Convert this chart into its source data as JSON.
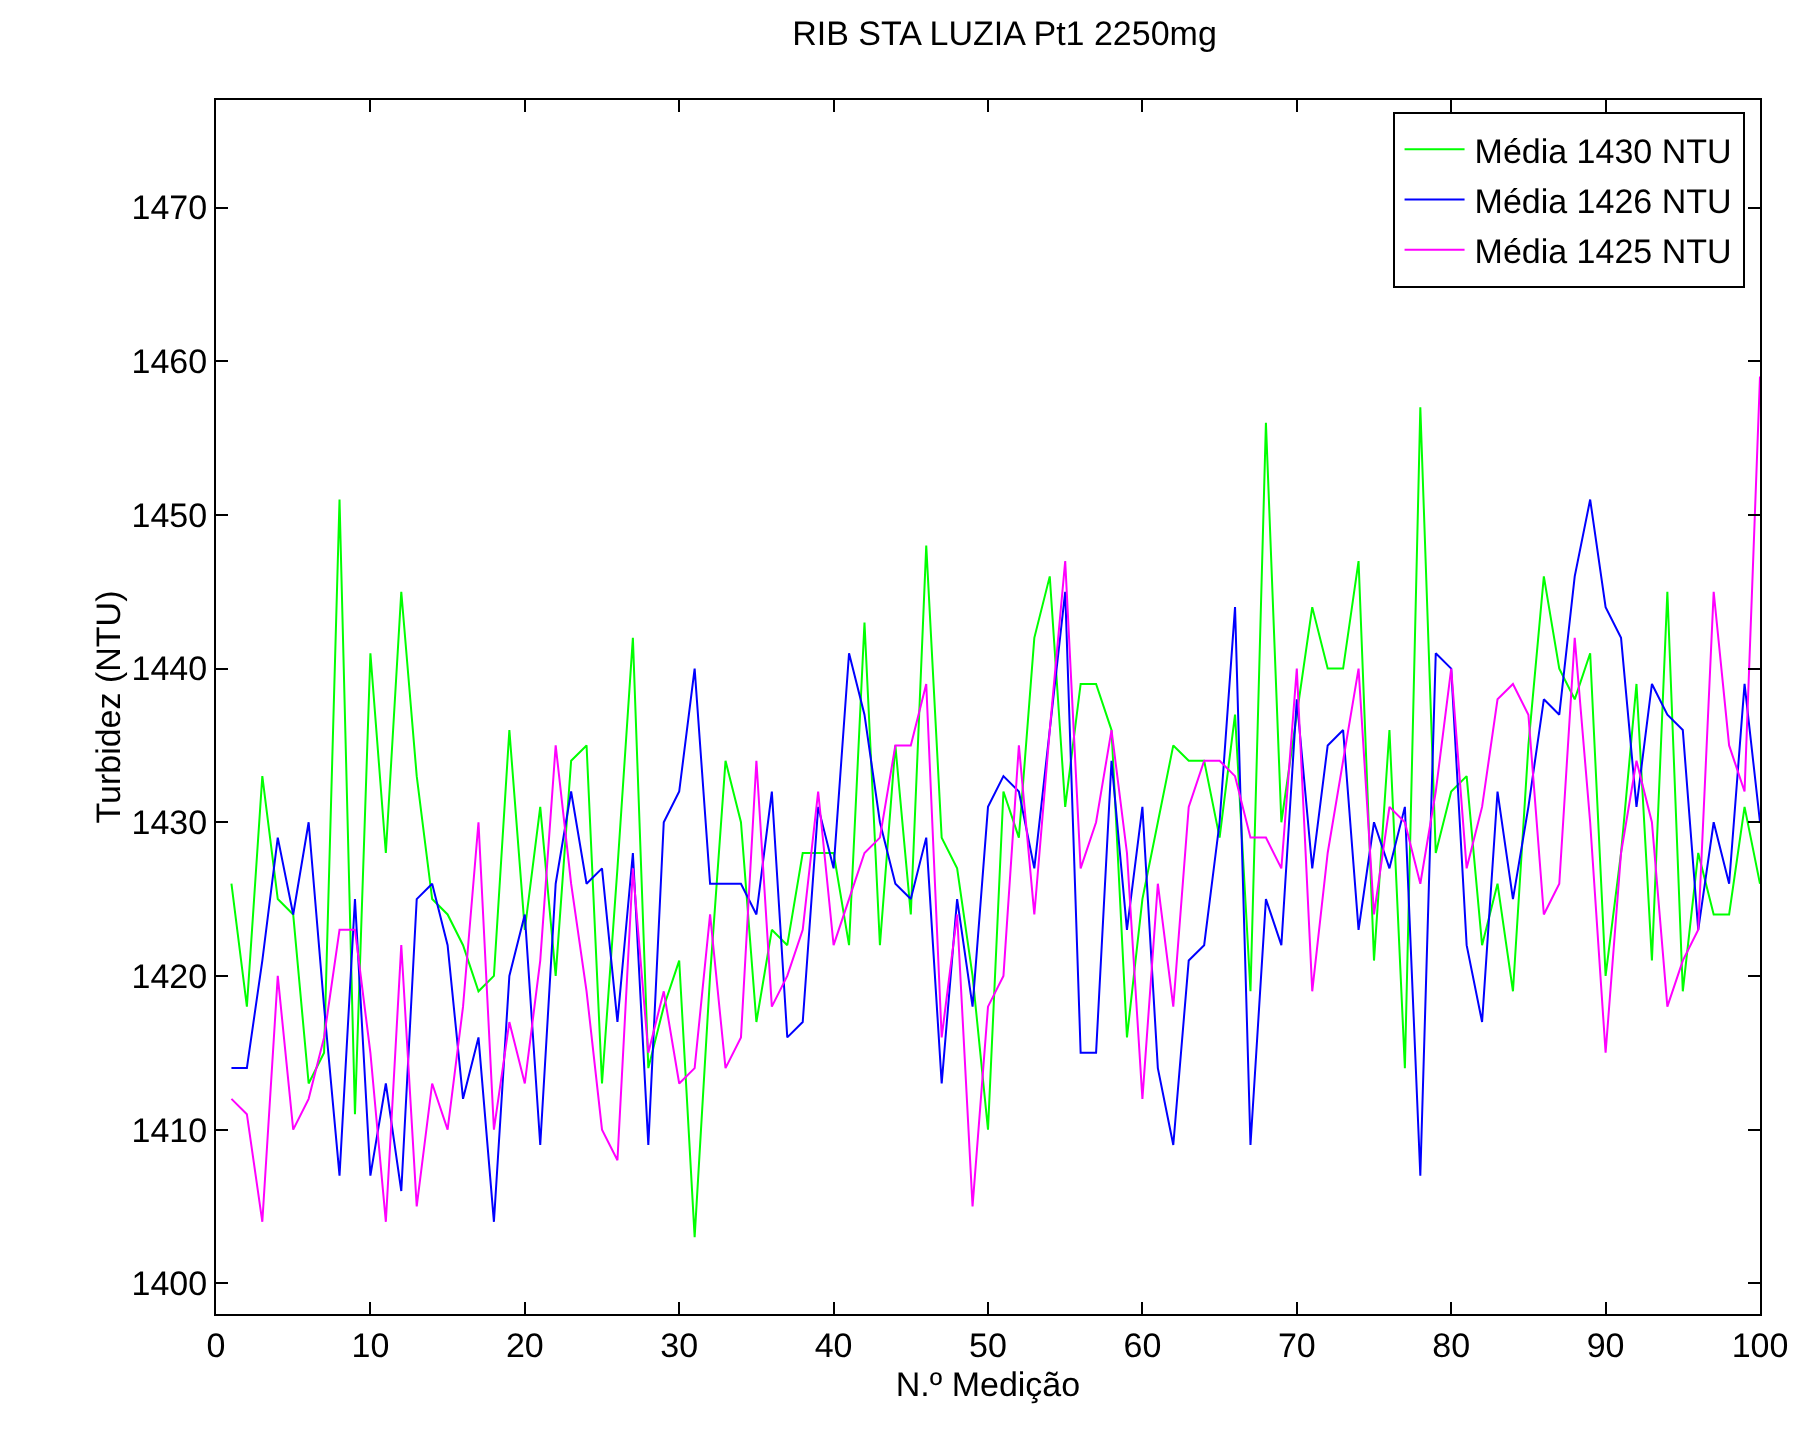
{
  "chart_data": {
    "type": "line",
    "title": "RIB STA LUZIA Pt1 2250mg",
    "xlabel": "N.º Medição",
    "ylabel": "Turbidez (NTU)",
    "x": [
      1,
      2,
      3,
      4,
      5,
      6,
      7,
      8,
      9,
      10,
      11,
      12,
      13,
      14,
      15,
      16,
      17,
      18,
      19,
      20,
      21,
      22,
      23,
      24,
      25,
      26,
      27,
      28,
      29,
      30,
      31,
      32,
      33,
      34,
      35,
      36,
      37,
      38,
      39,
      40,
      41,
      42,
      43,
      44,
      45,
      46,
      47,
      48,
      49,
      50,
      51,
      52,
      53,
      54,
      55,
      56,
      57,
      58,
      59,
      60,
      61,
      62,
      63,
      64,
      65,
      66,
      67,
      68,
      69,
      70,
      71,
      72,
      73,
      74,
      75,
      76,
      77,
      78,
      79,
      80,
      81,
      82,
      83,
      84,
      85,
      86,
      87,
      88,
      89,
      90,
      91,
      92,
      93,
      94,
      95,
      96,
      97,
      98,
      99,
      100
    ],
    "series": [
      {
        "name": "Média 1430 NTU",
        "color": "#00ff00",
        "values": [
          1426,
          1418,
          1433,
          1425,
          1424,
          1413,
          1415,
          1451,
          1411,
          1441,
          1428,
          1445,
          1433,
          1425,
          1424,
          1422,
          1419,
          1420,
          1436,
          1423,
          1431,
          1420,
          1434,
          1435,
          1413,
          1427,
          1442,
          1414,
          1418,
          1421,
          1403,
          1420,
          1434,
          1430,
          1417,
          1423,
          1422,
          1428,
          1428,
          1428,
          1422,
          1443,
          1422,
          1435,
          1424,
          1448,
          1429,
          1427,
          1420,
          1410,
          1432,
          1429,
          1442,
          1446,
          1431,
          1439,
          1439,
          1436,
          1416,
          1425,
          1430,
          1435,
          1434,
          1434,
          1429,
          1437,
          1419,
          1456,
          1430,
          1437,
          1444,
          1440,
          1440,
          1447,
          1421,
          1436,
          1414,
          1457,
          1428,
          1432,
          1433,
          1422,
          1426,
          1419,
          1435,
          1446,
          1440,
          1438,
          1441,
          1420,
          1428,
          1439,
          1421,
          1445,
          1419,
          1428,
          1424,
          1424,
          1431,
          1426
        ]
      },
      {
        "name": "Média 1426 NTU",
        "color": "#0000ff",
        "values": [
          1414,
          1414,
          1421,
          1429,
          1424,
          1430,
          1418,
          1407,
          1425,
          1407,
          1413,
          1406,
          1425,
          1426,
          1422,
          1412,
          1416,
          1404,
          1420,
          1424,
          1409,
          1426,
          1432,
          1426,
          1427,
          1417,
          1428,
          1409,
          1430,
          1432,
          1440,
          1426,
          1426,
          1426,
          1424,
          1432,
          1416,
          1417,
          1431,
          1427,
          1441,
          1437,
          1430,
          1426,
          1425,
          1429,
          1413,
          1425,
          1418,
          1431,
          1433,
          1432,
          1427,
          1436,
          1445,
          1415,
          1415,
          1434,
          1423,
          1431,
          1414,
          1409,
          1421,
          1422,
          1430,
          1444,
          1409,
          1425,
          1422,
          1438,
          1427,
          1435,
          1436,
          1423,
          1430,
          1427,
          1431,
          1407,
          1441,
          1440,
          1422,
          1417,
          1432,
          1425,
          1431,
          1438,
          1437,
          1446,
          1451,
          1444,
          1442,
          1431,
          1439,
          1437,
          1436,
          1423,
          1430,
          1426,
          1439,
          1430
        ]
      },
      {
        "name": "Média 1425 NTU",
        "color": "#ff00ff",
        "values": [
          1412,
          1411,
          1404,
          1420,
          1410,
          1412,
          1416,
          1423,
          1423,
          1415,
          1404,
          1422,
          1405,
          1413,
          1410,
          1418,
          1430,
          1410,
          1417,
          1413,
          1421,
          1435,
          1426,
          1419,
          1410,
          1408,
          1427,
          1415,
          1419,
          1413,
          1414,
          1424,
          1414,
          1416,
          1434,
          1418,
          1420,
          1423,
          1432,
          1422,
          1425,
          1428,
          1429,
          1435,
          1435,
          1439,
          1416,
          1424,
          1405,
          1418,
          1420,
          1435,
          1424,
          1436,
          1447,
          1427,
          1430,
          1436,
          1428,
          1412,
          1426,
          1418,
          1431,
          1434,
          1434,
          1433,
          1429,
          1429,
          1427,
          1440,
          1419,
          1428,
          1434,
          1440,
          1424,
          1431,
          1430,
          1426,
          1432,
          1440,
          1427,
          1431,
          1438,
          1439,
          1437,
          1424,
          1426,
          1442,
          1430,
          1415,
          1428,
          1434,
          1430,
          1418,
          1421,
          1423,
          1445,
          1435,
          1432,
          1459
        ]
      }
    ],
    "xlim": [
      0,
      100
    ],
    "xticks": [
      0,
      10,
      20,
      30,
      40,
      50,
      60,
      70,
      80,
      90,
      100
    ],
    "ylim": [
      1398,
      1477
    ],
    "yticks": [
      1400,
      1410,
      1420,
      1430,
      1440,
      1450,
      1460,
      1470
    ],
    "grid": false,
    "legend": "top right",
    "marker": "none",
    "line_style": "solid"
  }
}
